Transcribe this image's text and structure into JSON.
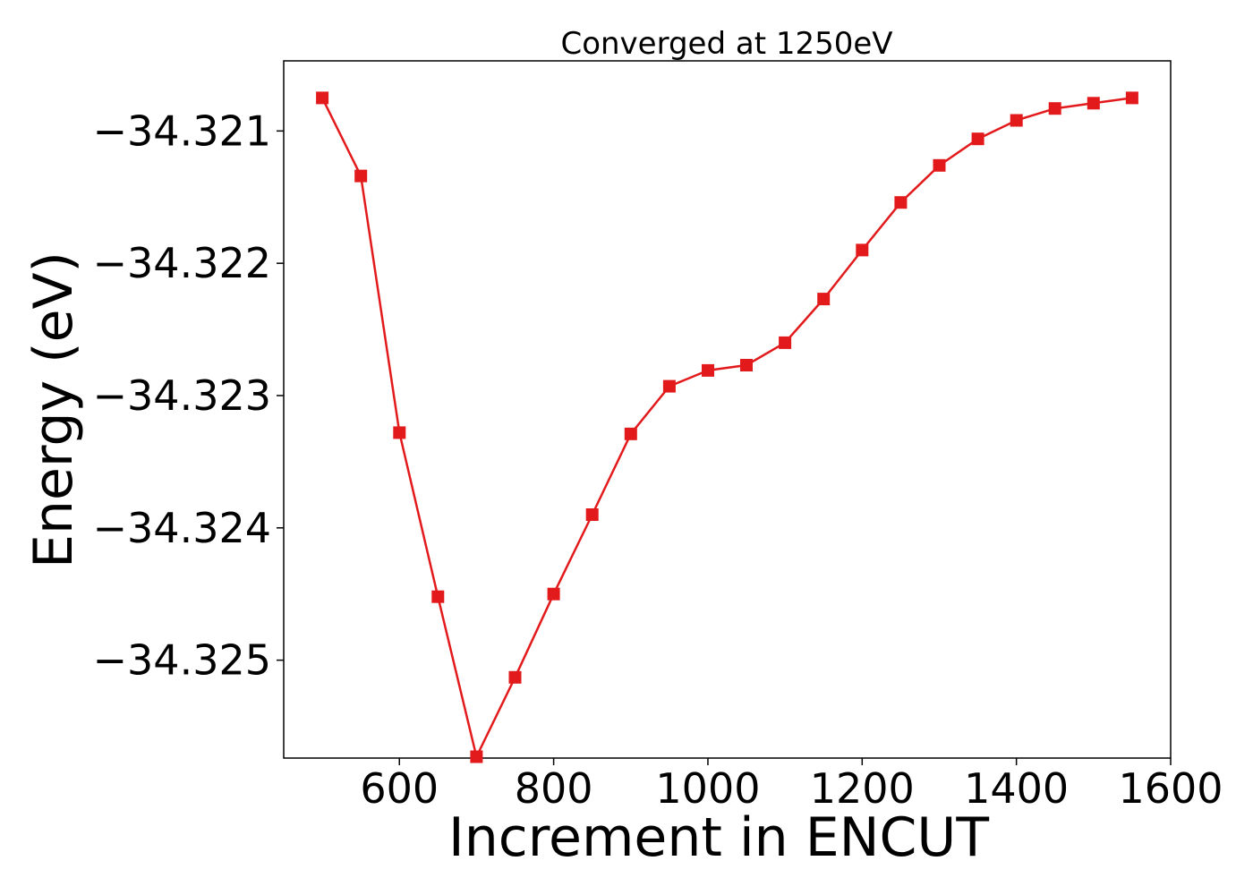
{
  "chart_data": {
    "type": "line",
    "title": "Converged at 1250eV",
    "xlabel": "Increment in ENCUT",
    "ylabel": "Energy (eV)",
    "xlim": [
      450,
      1600
    ],
    "ylim": [
      -34.32574,
      -34.32047
    ],
    "xticks": [
      600,
      800,
      1000,
      1200,
      1400,
      1600
    ],
    "xtick_labels": [
      "600",
      "800",
      "1000",
      "1200",
      "1400",
      "1600"
    ],
    "yticks": [
      -34.321,
      -34.322,
      -34.323,
      -34.324,
      -34.325
    ],
    "ytick_labels": [
      "−34.321",
      "−34.322",
      "−34.323",
      "−34.324",
      "−34.325"
    ],
    "grid": false,
    "series": [
      {
        "color": "#e31a1c",
        "marker": "square",
        "x": [
          500,
          550,
          600,
          650,
          700,
          750,
          800,
          850,
          900,
          950,
          1000,
          1050,
          1100,
          1150,
          1200,
          1250,
          1300,
          1350,
          1400,
          1450,
          1500,
          1550
        ],
        "y": [
          -34.32075,
          -34.32134,
          -34.32328,
          -34.32452,
          -34.32573,
          -34.32513,
          -34.3245,
          -34.3239,
          -34.32329,
          -34.32293,
          -34.32281,
          -34.32277,
          -34.3226,
          -34.32227,
          -34.3219,
          -34.32154,
          -34.32126,
          -34.32106,
          -34.32092,
          -34.32083,
          -34.32079,
          -34.32075
        ]
      }
    ]
  }
}
